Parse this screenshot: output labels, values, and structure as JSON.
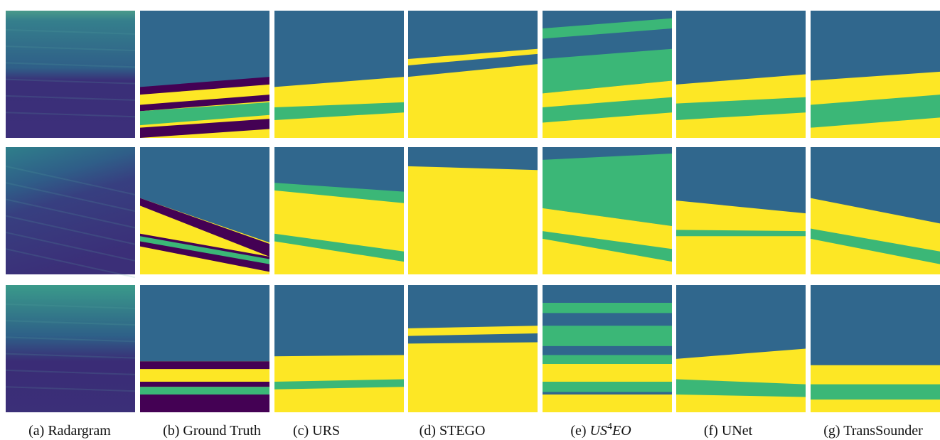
{
  "figure": {
    "captions": [
      {
        "label": "(a)",
        "name": "Radargram"
      },
      {
        "label": "(b)",
        "name": "Ground Truth"
      },
      {
        "label": "(c)",
        "name": "URS"
      },
      {
        "label": "(d)",
        "name": "STEGO"
      },
      {
        "label": "(e)",
        "name": "US",
        "sup": "4",
        "name_end": "EO"
      },
      {
        "label": "(f)",
        "name": "UNet"
      },
      {
        "label": "(g)",
        "name": "TransSounder"
      }
    ]
  }
}
